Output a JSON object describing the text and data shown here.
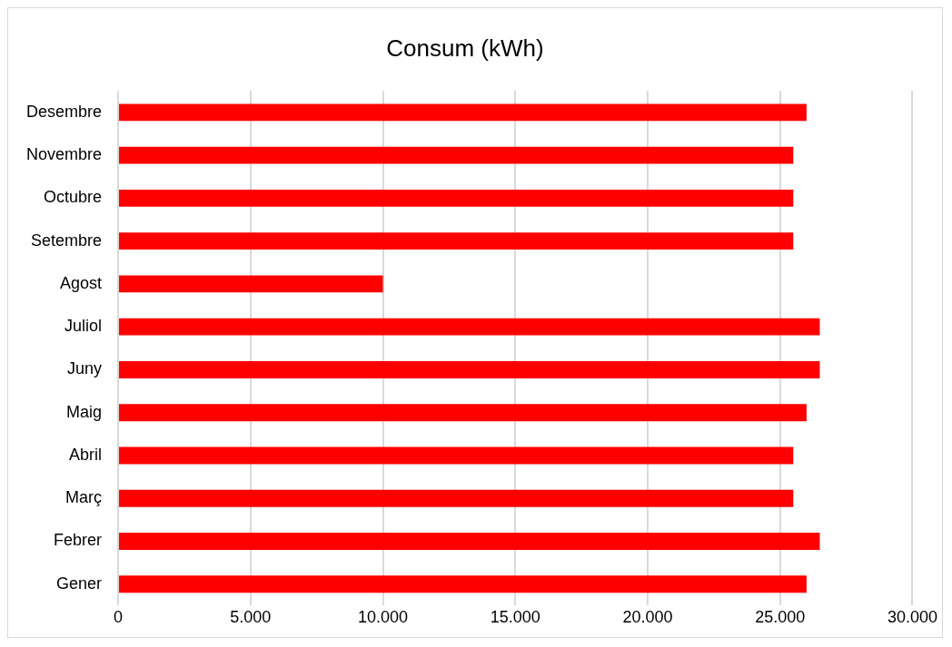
{
  "chart_data": {
    "type": "bar",
    "orientation": "horizontal",
    "title": "Consum (kWh)",
    "categories": [
      "Desembre",
      "Novembre",
      "Octubre",
      "Setembre",
      "Agost",
      "Juliol",
      "Juny",
      "Maig",
      "Abril",
      "Març",
      "Febrer",
      "Gener"
    ],
    "values": [
      26000,
      25500,
      25500,
      25500,
      10000,
      26500,
      26500,
      26000,
      25500,
      25500,
      26500,
      26000
    ],
    "color": "#ff0000",
    "xlim": [
      0,
      30000
    ],
    "xticks": [
      0,
      {
        "value": 5000,
        "label": "5.000"
      },
      {
        "value": 10000,
        "label": "10.000"
      },
      {
        "value": 15000,
        "label": "15.000"
      },
      {
        "value": 20000,
        "label": "20.000"
      },
      {
        "value": 25000,
        "label": "25.000"
      },
      {
        "value": 30000,
        "label": "30.000"
      }
    ],
    "grid": "x"
  }
}
